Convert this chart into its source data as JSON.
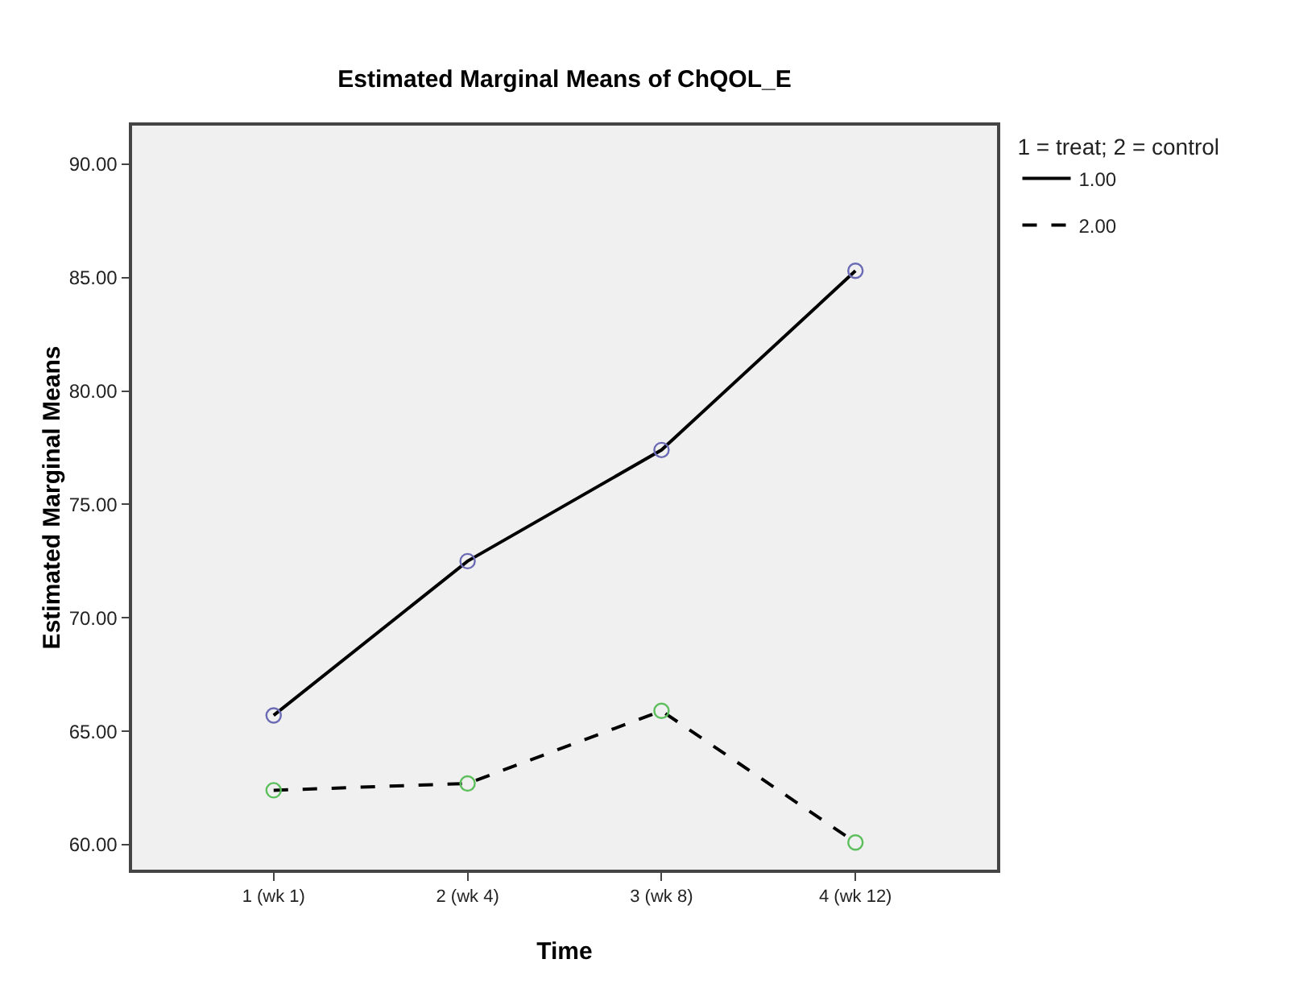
{
  "chart_data": {
    "type": "line",
    "title": "Estimated Marginal Means of ChQOL_E",
    "xlabel": "Time",
    "ylabel": "Estimated Marginal Means",
    "legend_title": "1 = treat; 2 = control",
    "categories": [
      "1 (wk 1)",
      "2 (wk 4)",
      "3 (wk 8)",
      "4 (wk 12)"
    ],
    "series": [
      {
        "name": "1.00",
        "color": "#000000",
        "colors": [
          "#6b6bb5",
          "#6b6bb5",
          "#6b6bb5",
          "#6b6bb5"
        ],
        "line_style": "solid",
        "values": [
          65.7,
          72.5,
          77.4,
          85.3
        ]
      },
      {
        "name": "2.00",
        "color": "#000000",
        "colors": [
          "#5cbf5c",
          "#5cbf5c",
          "#5cbf5c",
          "#5cbf5c"
        ],
        "line_style": "dashed",
        "values": [
          62.4,
          62.7,
          65.9,
          60.1
        ]
      }
    ],
    "ylim": [
      58.9,
      91.7
    ],
    "yticks": [
      {
        "value": 60,
        "label": "60.00"
      },
      {
        "value": 65,
        "label": "65.00"
      },
      {
        "value": 70,
        "label": "70.00"
      },
      {
        "value": 75,
        "label": "75.00"
      },
      {
        "value": 80,
        "label": "80.00"
      },
      {
        "value": 85,
        "label": "85.00"
      },
      {
        "value": 90,
        "label": "90.00"
      }
    ],
    "grid": false,
    "legend": "top right",
    "marker": "circle"
  }
}
